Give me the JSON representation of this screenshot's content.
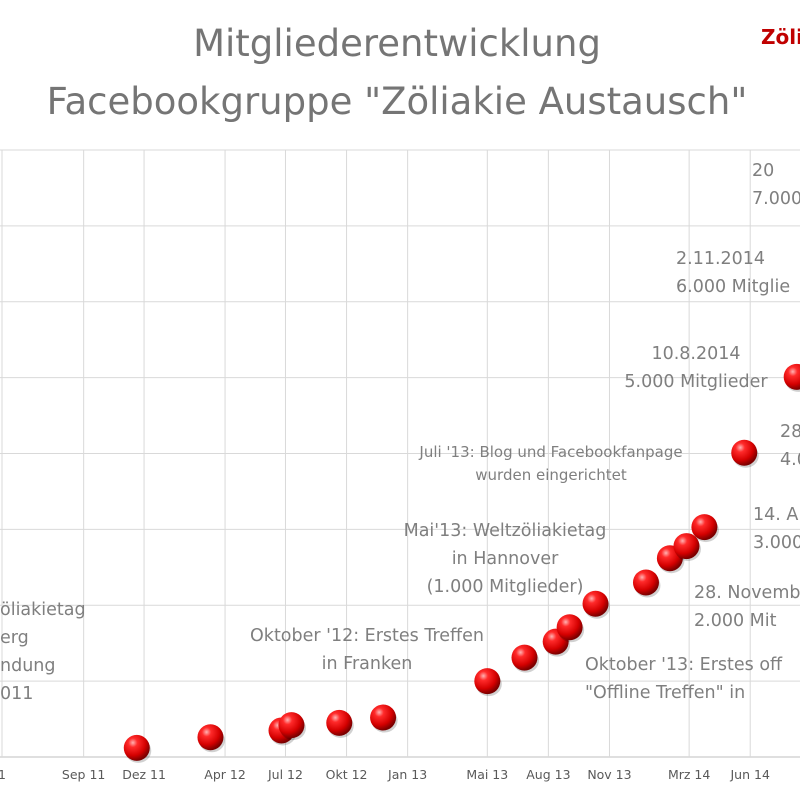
{
  "chart_data": {
    "type": "scatter",
    "title": [
      "Mitgliederentwicklung",
      "Facebookgruppe \"Zöliakie Austausch\""
    ],
    "brand_label": "Zöli",
    "x_start": "2011-05-01",
    "x_end": "2014-08-15",
    "ylim": [
      0,
      8000
    ],
    "y_grid_step": 1000,
    "grid": true,
    "x_ticks": [
      {
        "date": "2011-05-01",
        "label": "1"
      },
      {
        "date": "2011-09-01",
        "label": "Sep 11"
      },
      {
        "date": "2011-12-01",
        "label": "Dez 11"
      },
      {
        "date": "2012-04-01",
        "label": "Apr 12"
      },
      {
        "date": "2012-07-01",
        "label": "Jul 12"
      },
      {
        "date": "2012-10-01",
        "label": "Okt 12"
      },
      {
        "date": "2013-01-01",
        "label": "Jan 13"
      },
      {
        "date": "2013-05-01",
        "label": "Mai 13"
      },
      {
        "date": "2013-08-01",
        "label": "Aug 13"
      },
      {
        "date": "2013-11-01",
        "label": "Nov 13"
      },
      {
        "date": "2014-03-01",
        "label": "Mrz 14"
      },
      {
        "date": "2014-06-01",
        "label": "Jun 14"
      }
    ],
    "points": [
      {
        "date": "2011-11-20",
        "members": 120
      },
      {
        "date": "2012-03-10",
        "members": 260
      },
      {
        "date": "2012-06-25",
        "members": 350
      },
      {
        "date": "2012-07-10",
        "members": 420
      },
      {
        "date": "2012-09-20",
        "members": 450
      },
      {
        "date": "2012-11-25",
        "members": 520
      },
      {
        "date": "2013-05-01",
        "members": 1000
      },
      {
        "date": "2013-06-26",
        "members": 1310
      },
      {
        "date": "2013-08-12",
        "members": 1520
      },
      {
        "date": "2013-09-02",
        "members": 1710
      },
      {
        "date": "2013-10-11",
        "members": 2020
      },
      {
        "date": "2013-12-26",
        "members": 2300
      },
      {
        "date": "2014-01-31",
        "members": 2620
      },
      {
        "date": "2014-02-25",
        "members": 2780
      },
      {
        "date": "2014-03-24",
        "members": 3030
      },
      {
        "date": "2014-05-23",
        "members": 4010
      },
      {
        "date": "2014-08-10",
        "members": 5010
      }
    ],
    "annotations": [
      {
        "lines": [
          "öliakietag",
          "erg",
          "ndung",
          "011"
        ],
        "x": 0,
        "y": 615,
        "anchor": "start",
        "size": "large"
      },
      {
        "lines": [
          "Oktober '12: Erstes Treffen",
          "in Franken"
        ],
        "x": 367,
        "y": 641,
        "anchor": "middle",
        "size": "large"
      },
      {
        "lines": [
          "Mai'13: Weltzöliakietag",
          "in Hannover",
          "(1.000 Mitglieder)"
        ],
        "x": 505,
        "y": 536,
        "anchor": "middle",
        "size": "large"
      },
      {
        "lines": [
          "Juli '13: Blog und Facebookfanpage",
          "wurden eingerichtet"
        ],
        "x": 551,
        "y": 457,
        "anchor": "middle",
        "size": "small"
      },
      {
        "lines": [
          "10.8.2014",
          "5.000 Mitglieder"
        ],
        "x": 696,
        "y": 359,
        "anchor": "middle",
        "size": "large"
      },
      {
        "lines": [
          "2.11.2014",
          "6.000 Mitglie"
        ],
        "x": 676,
        "y": 264,
        "anchor": "start",
        "size": "large"
      },
      {
        "lines": [
          "20",
          "7.000"
        ],
        "x": 752,
        "y": 176,
        "anchor": "start",
        "size": "large"
      },
      {
        "lines": [
          "28",
          "4.0"
        ],
        "x": 780,
        "y": 437,
        "anchor": "start",
        "size": "large"
      },
      {
        "lines": [
          "14. A",
          "3.000"
        ],
        "x": 753,
        "y": 520,
        "anchor": "start",
        "size": "large"
      },
      {
        "lines": [
          "28. Novemb",
          "2.000 Mit"
        ],
        "x": 694,
        "y": 598,
        "anchor": "start",
        "size": "large"
      },
      {
        "lines": [
          "Oktober '13: Erstes off",
          "\"Offline Treffen\" in"
        ],
        "x": 585,
        "y": 670,
        "anchor": "start",
        "size": "large"
      }
    ]
  }
}
